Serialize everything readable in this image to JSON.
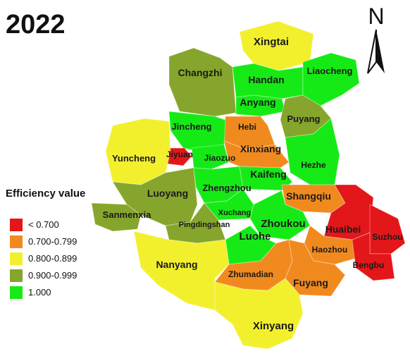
{
  "title": "2022",
  "legend": {
    "title": "Efficiency value",
    "items": [
      {
        "label": "< 0.700",
        "color": "#e3161a"
      },
      {
        "label": "0.700-0.799",
        "color": "#f18a1e"
      },
      {
        "label": "0.800-0.899",
        "color": "#f2f02d"
      },
      {
        "label": "0.900-0.999",
        "color": "#86a52c"
      },
      {
        "label": "1.000",
        "color": "#16ea16"
      }
    ]
  },
  "north_label": "N",
  "cities": [
    {
      "name": "Xingtai",
      "class": "0.800-0.899"
    },
    {
      "name": "Changzhi",
      "class": "0.900-0.999"
    },
    {
      "name": "Handan",
      "class": "1.000"
    },
    {
      "name": "Liaocheng",
      "class": "1.000"
    },
    {
      "name": "Anyang",
      "class": "1.000"
    },
    {
      "name": "Hebi",
      "class": "0.700-0.799"
    },
    {
      "name": "Puyang",
      "class": "0.900-0.999"
    },
    {
      "name": "Jincheng",
      "class": "1.000"
    },
    {
      "name": "Jiyuan",
      "class": "< 0.700"
    },
    {
      "name": "Jiaozuo",
      "class": "1.000"
    },
    {
      "name": "Xinxiang",
      "class": "0.700-0.799"
    },
    {
      "name": "Yuncheng",
      "class": "0.800-0.899"
    },
    {
      "name": "Kaifeng",
      "class": "1.000"
    },
    {
      "name": "Hezhe",
      "class": "1.000"
    },
    {
      "name": "Luoyang",
      "class": "0.900-0.999"
    },
    {
      "name": "Zhengzhou",
      "class": "1.000"
    },
    {
      "name": "Shangqiu",
      "class": "0.700-0.799"
    },
    {
      "name": "Sanmenxia",
      "class": "0.900-0.999"
    },
    {
      "name": "Xuchang",
      "class": "1.000"
    },
    {
      "name": "Pingdingshan",
      "class": "0.900-0.999"
    },
    {
      "name": "Zhoukou",
      "class": "1.000"
    },
    {
      "name": "Luohe",
      "class": "1.000"
    },
    {
      "name": "Huaibei",
      "class": "< 0.700"
    },
    {
      "name": "Suzhou",
      "class": "< 0.700"
    },
    {
      "name": "Haozhou",
      "class": "0.700-0.799"
    },
    {
      "name": "Bengbu",
      "class": "< 0.700"
    },
    {
      "name": "Nanyang",
      "class": "0.800-0.899"
    },
    {
      "name": "Zhumadian",
      "class": "0.700-0.799"
    },
    {
      "name": "Fuyang",
      "class": "0.700-0.799"
    },
    {
      "name": "Xinyang",
      "class": "0.800-0.899"
    }
  ]
}
